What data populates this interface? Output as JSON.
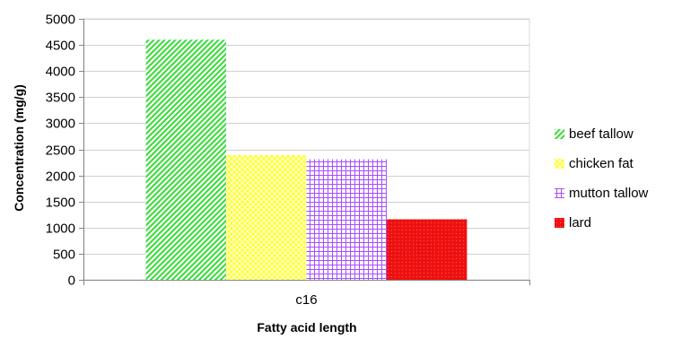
{
  "chart_data": {
    "type": "bar",
    "xlabel": "Fatty acid length",
    "ylabel": "Concentration (mg/g)",
    "ylim": [
      0,
      5000
    ],
    "ytick_step": 500,
    "grid": true,
    "legend_position": "right",
    "categories": [
      "c16"
    ],
    "series": [
      {
        "name": "beef tallow",
        "values": [
          4600
        ],
        "color": "#33dd33",
        "pattern": "diagonal-hatch"
      },
      {
        "name": "chicken fat",
        "values": [
          2390
        ],
        "color": "#ffff33",
        "pattern": "diamond-grid"
      },
      {
        "name": "mutton tallow",
        "values": [
          2310
        ],
        "color": "#a64dff",
        "pattern": "square-grid"
      },
      {
        "name": "lard",
        "values": [
          1160
        ],
        "color": "#ee1111",
        "pattern": "solid"
      }
    ]
  }
}
